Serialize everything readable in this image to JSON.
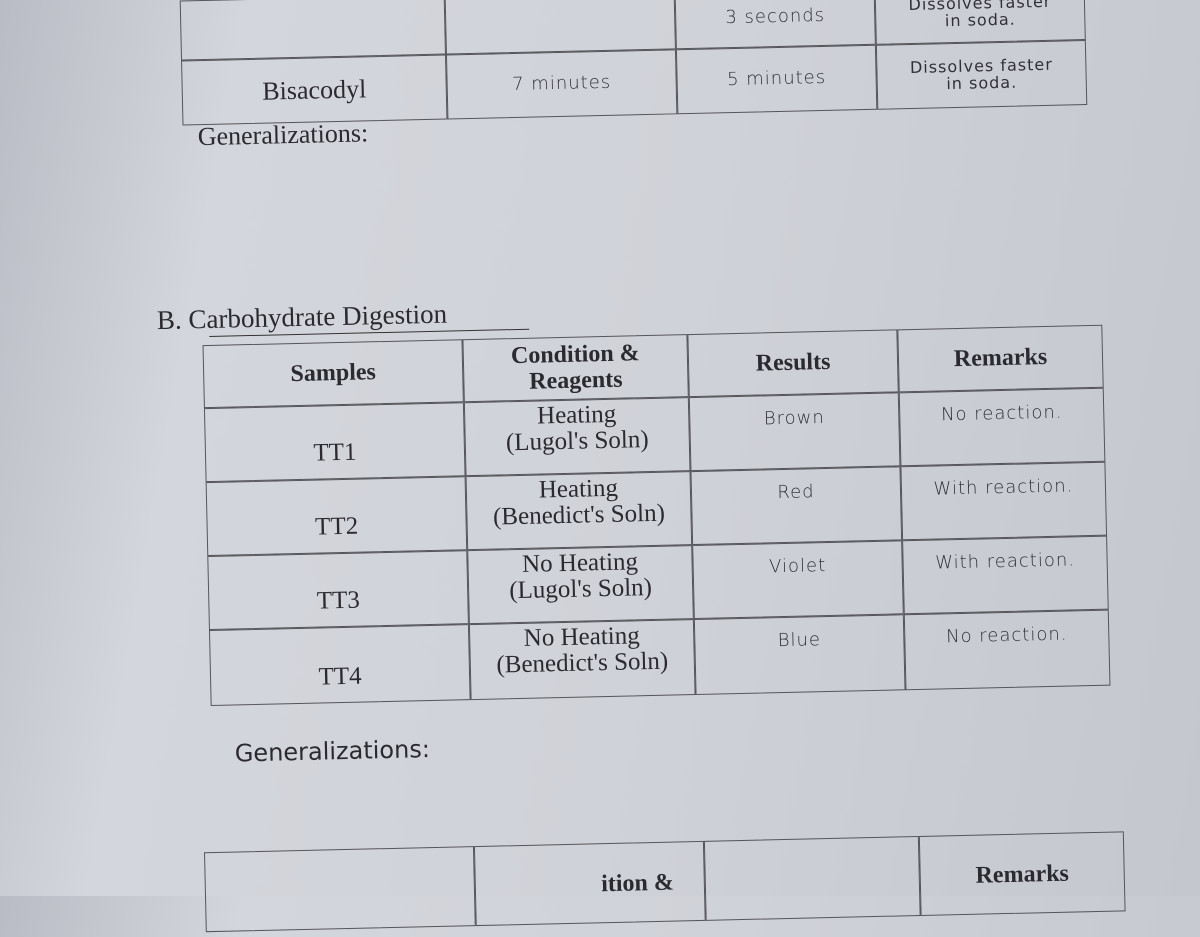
{
  "top_table": {
    "rows": [
      [
        "3 seconds",
        "Dissolves faster\nin soda."
      ],
      [
        "Bisacodyl",
        "7 minutes",
        "5 minutes",
        "Dissolves faster\nin soda."
      ]
    ]
  },
  "generalizations_1": "Generalizations:",
  "section_b": {
    "title": "B. Carbohydrate Digestion",
    "table": {
      "header": [
        "Samples",
        "Condition &\nReagents",
        "Results",
        "Remarks"
      ],
      "rows": [
        [
          "TT1",
          "Heating\n(Lugol's Soln)",
          "Brown",
          "No reaction."
        ],
        [
          "TT2",
          "Heating\n(Benedict's Soln)",
          "Red",
          "With reaction."
        ],
        [
          "TT3",
          "No Heating\n(Lugol's Soln)",
          "Violet",
          "With reaction."
        ],
        [
          "TT4",
          "No Heating\n(Benedict's Soln)",
          "Blue",
          "No reaction."
        ]
      ]
    },
    "generalizations": "Generalizations:"
  },
  "bottom_table": {
    "header": [
      "ition &",
      "Remarks"
    ]
  }
}
